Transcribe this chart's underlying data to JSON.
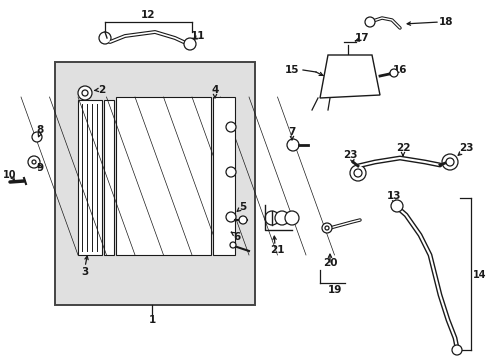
{
  "bg_color": "#ffffff",
  "box_fill": "#e0e0e0",
  "line_color": "#1a1a1a",
  "fs": 7.5,
  "figsize": [
    4.89,
    3.6
  ],
  "dpi": 100
}
